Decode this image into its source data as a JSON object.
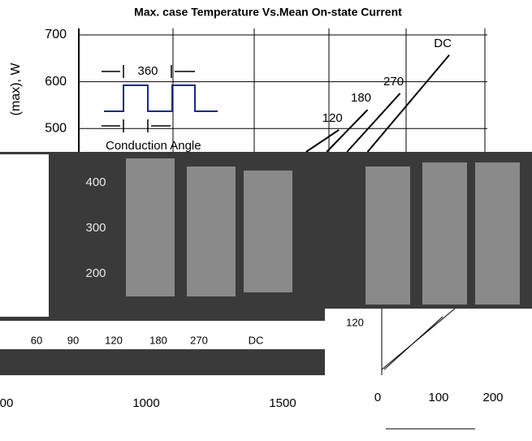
{
  "chart_data": {
    "type": "line",
    "title": "Max. case Temperature Vs.Mean On-state Current",
    "y_label": "(max), W",
    "xlim": [
      770,
      2240
    ],
    "ylim": [
      450,
      720
    ],
    "yticks": [
      500,
      600,
      700
    ],
    "grid": true,
    "series": [
      {
        "name": "DC",
        "color": "#000000",
        "x": [
          1809,
          2103
        ],
        "values": [
          450,
          657
        ]
      },
      {
        "name": "270",
        "color": "#000000",
        "x": [
          1735,
          1926
        ],
        "values": [
          450,
          575
        ]
      },
      {
        "name": "180",
        "color": "#000000",
        "x": [
          1662,
          1809
        ],
        "values": [
          450,
          540
        ]
      },
      {
        "name": "120",
        "color": "#000000",
        "x": [
          1588,
          1706
        ],
        "values": [
          450,
          497
        ]
      }
    ],
    "annotations": {
      "period": "360",
      "caption": "Conduction Angle"
    }
  },
  "fragments": {
    "left_ticks": [
      "400",
      "300",
      "200"
    ],
    "angles": [
      "60",
      "90",
      "120",
      "180",
      "270",
      "DC"
    ],
    "bottom_ticks": [
      "00",
      "1000",
      "1500"
    ],
    "right_ticks": [
      "0",
      "100",
      "200"
    ],
    "right_marker": "120"
  }
}
